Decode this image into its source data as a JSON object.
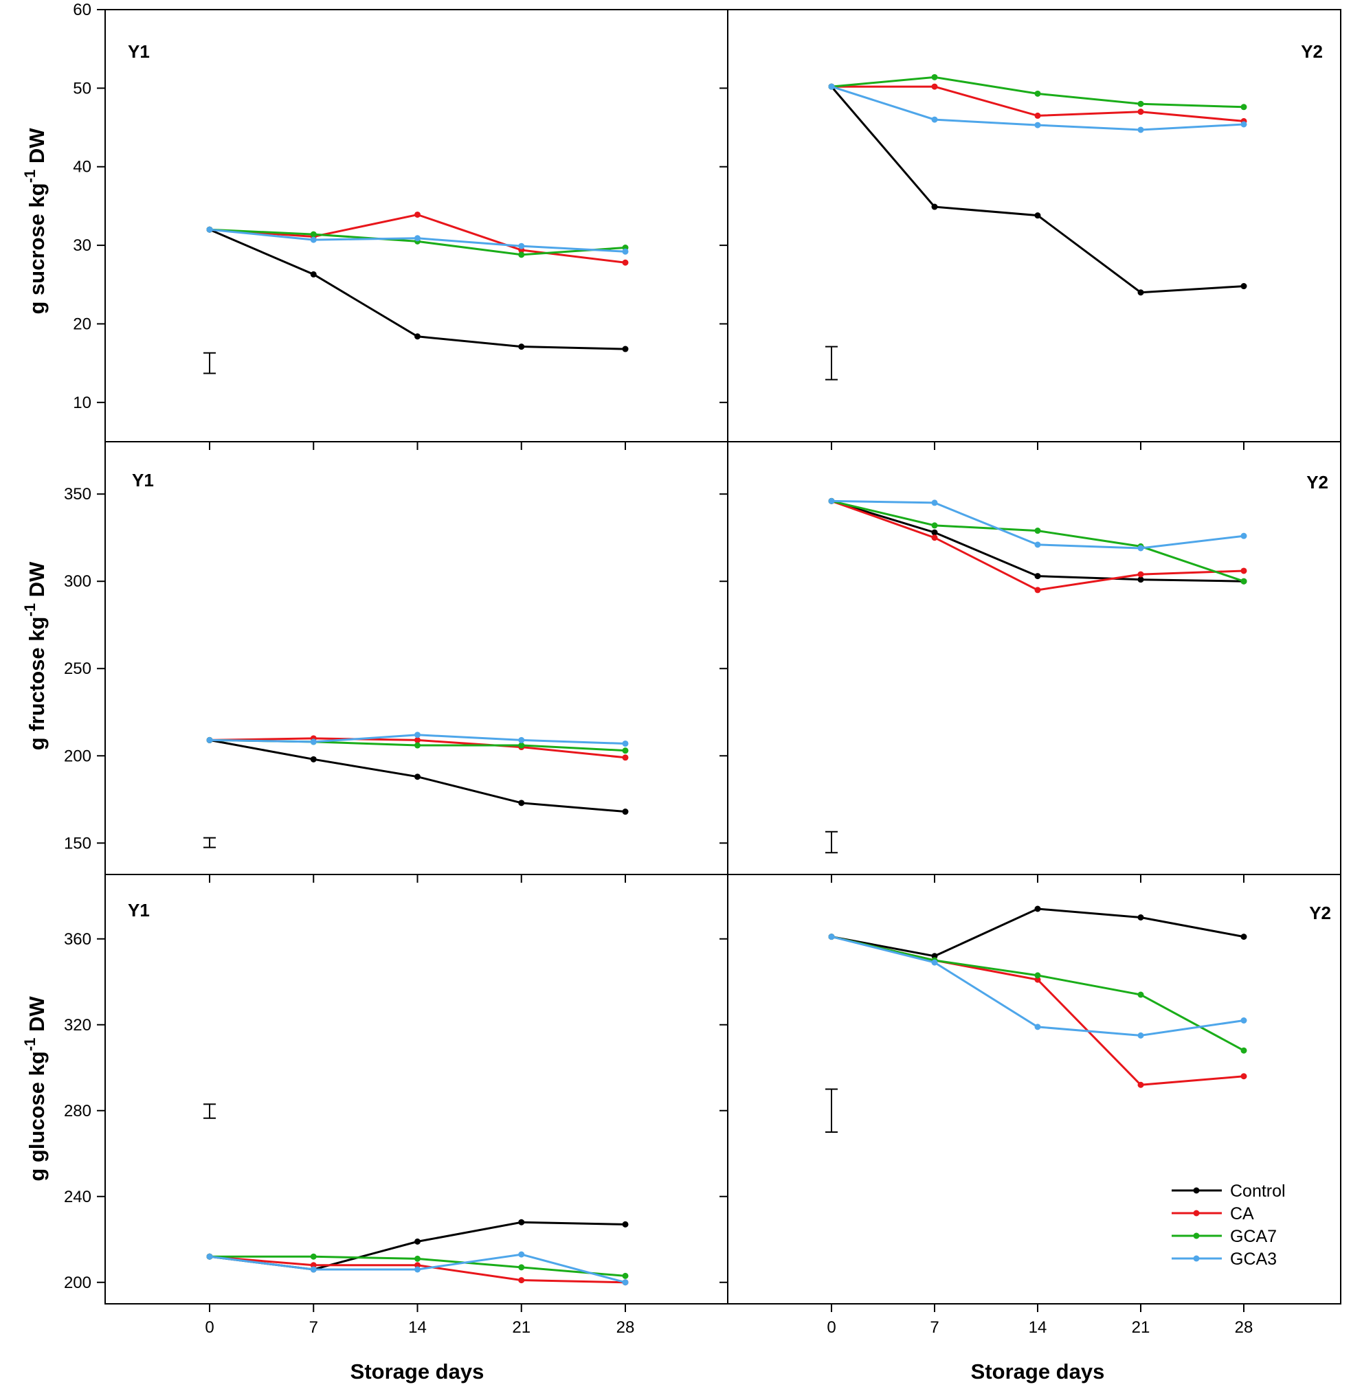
{
  "chart_data": [
    {
      "type": "line",
      "panel": "sucrose-Y1",
      "label": "Y1",
      "x": [
        0,
        7,
        14,
        21,
        28
      ],
      "ylim": [
        5,
        60
      ],
      "yticks": [
        10,
        20,
        30,
        40,
        50,
        60
      ],
      "ylabel": "g sucrose kg-1 DW",
      "error_bar": {
        "x": 0,
        "low": 13.7,
        "high": 16.3
      },
      "series": [
        {
          "name": "Control",
          "values": [
            32.0,
            26.3,
            18.4,
            17.1,
            16.8
          ]
        },
        {
          "name": "CA",
          "values": [
            32.0,
            31.1,
            33.9,
            29.4,
            27.8
          ]
        },
        {
          "name": "GCA7",
          "values": [
            32.0,
            31.4,
            30.5,
            28.8,
            29.7
          ]
        },
        {
          "name": "GCA3",
          "values": [
            32.0,
            30.7,
            30.9,
            29.9,
            29.2
          ]
        }
      ]
    },
    {
      "type": "line",
      "panel": "sucrose-Y2",
      "label": "Y2",
      "x": [
        0,
        7,
        14,
        21,
        28
      ],
      "ylim": [
        5,
        60
      ],
      "series": [
        {
          "name": "Control",
          "values": [
            50.2,
            34.9,
            33.8,
            24.0,
            24.8
          ]
        },
        {
          "name": "CA",
          "values": [
            50.2,
            50.2,
            46.5,
            47.0,
            45.8
          ]
        },
        {
          "name": "GCA7",
          "values": [
            50.2,
            51.4,
            49.3,
            48.0,
            47.6
          ]
        },
        {
          "name": "GCA3",
          "values": [
            50.2,
            46.0,
            45.3,
            44.7,
            45.4
          ]
        }
      ],
      "error_bar": {
        "x": 0,
        "low": 12.9,
        "high": 17.1
      }
    },
    {
      "type": "line",
      "panel": "fructose-Y1",
      "label": "Y1",
      "x": [
        0,
        7,
        14,
        21,
        28
      ],
      "ylim": [
        132,
        380
      ],
      "yticks": [
        150,
        200,
        250,
        300,
        350
      ],
      "ylabel": "g fructose kg-1 DW",
      "error_bar": {
        "x": 0,
        "low": 147.5,
        "high": 153.0
      },
      "series": [
        {
          "name": "Control",
          "values": [
            209,
            198,
            188,
            173,
            168
          ]
        },
        {
          "name": "CA",
          "values": [
            209,
            210,
            209,
            205,
            199
          ]
        },
        {
          "name": "GCA7",
          "values": [
            209,
            208,
            206,
            206,
            203
          ]
        },
        {
          "name": "GCA3",
          "values": [
            209,
            208,
            212,
            209,
            207
          ]
        }
      ]
    },
    {
      "type": "line",
      "panel": "fructose-Y2",
      "label": "Y2",
      "x": [
        0,
        7,
        14,
        21,
        28
      ],
      "ylim": [
        132,
        380
      ],
      "error_bar": {
        "x": 0,
        "low": 144.5,
        "high": 156.5
      },
      "series": [
        {
          "name": "Control",
          "values": [
            346,
            328,
            303,
            301,
            300
          ]
        },
        {
          "name": "CA",
          "values": [
            346,
            325,
            295,
            304,
            306
          ]
        },
        {
          "name": "GCA7",
          "values": [
            346,
            332,
            329,
            320,
            300
          ]
        },
        {
          "name": "GCA3",
          "values": [
            346,
            345,
            321,
            319,
            326
          ]
        }
      ]
    },
    {
      "type": "line",
      "panel": "glucose-Y1",
      "label": "Y1",
      "x": [
        0,
        7,
        14,
        21,
        28
      ],
      "ylim": [
        190,
        390
      ],
      "yticks": [
        200,
        240,
        280,
        320,
        360
      ],
      "ylabel": "g glucose kg-1 DW",
      "xlabel": "Storage days",
      "error_bar": {
        "x": 0,
        "low": 276.5,
        "high": 283.0
      },
      "series": [
        {
          "name": "Control",
          "values": [
            212,
            206,
            219,
            228,
            227
          ]
        },
        {
          "name": "CA",
          "values": [
            212,
            208,
            208,
            201,
            200
          ]
        },
        {
          "name": "GCA7",
          "values": [
            212,
            212,
            211,
            207,
            203
          ]
        },
        {
          "name": "GCA3",
          "values": [
            212,
            206,
            206,
            213,
            200
          ]
        }
      ]
    },
    {
      "type": "line",
      "panel": "glucose-Y2",
      "label": "Y2",
      "x": [
        0,
        7,
        14,
        21,
        28
      ],
      "ylim": [
        190,
        390
      ],
      "xlabel": "Storage days",
      "error_bar": {
        "x": 0,
        "low": 270,
        "high": 290
      },
      "series": [
        {
          "name": "Control",
          "values": [
            361,
            352,
            374,
            370,
            361
          ]
        },
        {
          "name": "CA",
          "values": [
            361,
            350,
            341,
            292,
            296
          ]
        },
        {
          "name": "GCA7",
          "values": [
            361,
            350,
            343,
            334,
            308
          ]
        },
        {
          "name": "GCA3",
          "values": [
            361,
            349,
            319,
            315,
            322
          ]
        }
      ]
    }
  ],
  "axes": {
    "xticks": [
      "0",
      "7",
      "14",
      "21",
      "28"
    ],
    "xlabel": "Storage days",
    "ylabels": {
      "sucrose": {
        "main": "g sucrose kg",
        "sup": "-1",
        "unit": " DW"
      },
      "fructose": {
        "main": "g fructose kg",
        "sup": "-1",
        "unit": " DW"
      },
      "glucose": {
        "main": "g glucose kg",
        "sup": "-1",
        "unit": " DW"
      }
    }
  },
  "legend": {
    "placement": "bottom-right of glucose Y2 panel",
    "entries": [
      {
        "name": "Control",
        "color": "#000000"
      },
      {
        "name": "CA",
        "color": "#e8161b"
      },
      {
        "name": "GCA7",
        "color": "#1aad19"
      },
      {
        "name": "GCA3",
        "color": "#4ea6ea"
      }
    ]
  }
}
